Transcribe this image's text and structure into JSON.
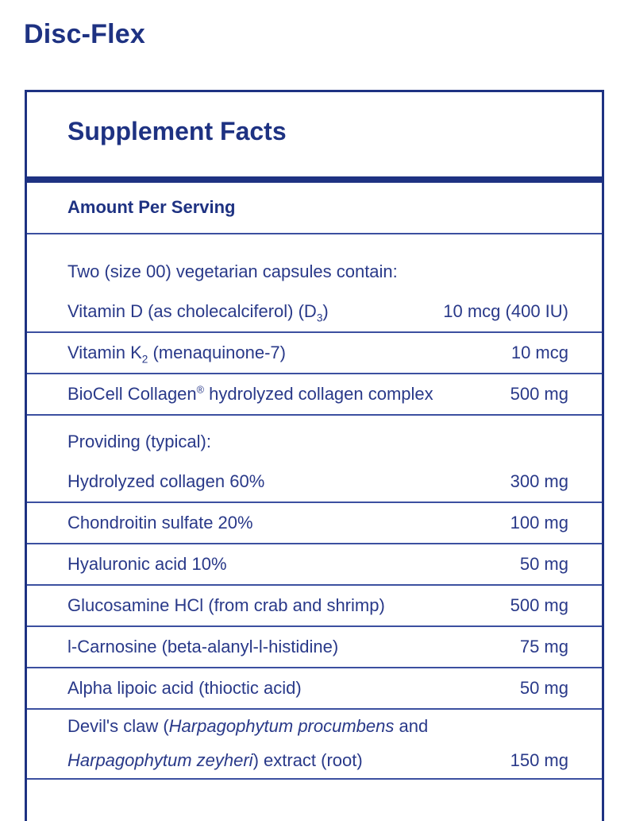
{
  "page": {
    "title": "Disc-Flex"
  },
  "colors": {
    "navy": "#1e3282",
    "body_text": "#293989",
    "divider": "#3c50a0",
    "background": "#ffffff"
  },
  "supplement_facts": {
    "header": "Supplement Facts",
    "column_header": "Amount Per Serving",
    "rows": [
      {
        "lines": [
          {
            "segments": [
              {
                "t": "Two (size 00) vegetarian capsules contain:"
              }
            ],
            "amount": ""
          },
          {
            "segments": [
              {
                "t": "Vitamin D (as cholecalciferol) (D"
              },
              {
                "t": "3",
                "style": "sub"
              },
              {
                "t": ")"
              }
            ],
            "amount": "10 mcg (400 IU)"
          }
        ]
      },
      {
        "lines": [
          {
            "segments": [
              {
                "t": "Vitamin K"
              },
              {
                "t": "2",
                "style": "sub"
              },
              {
                "t": " (menaquinone-7)"
              }
            ],
            "amount": "10 mcg"
          }
        ]
      },
      {
        "lines": [
          {
            "segments": [
              {
                "t": "BioCell Collagen"
              },
              {
                "t": "®",
                "style": "sup"
              },
              {
                "t": " hydrolyzed collagen complex"
              }
            ],
            "amount": "500 mg"
          }
        ]
      },
      {
        "lines": [
          {
            "segments": [
              {
                "t": "Providing (typical):"
              }
            ],
            "amount": ""
          },
          {
            "segments": [
              {
                "t": "Hydrolyzed collagen 60%"
              }
            ],
            "amount": "300 mg"
          }
        ]
      },
      {
        "lines": [
          {
            "segments": [
              {
                "t": "Chondroitin sulfate 20%"
              }
            ],
            "amount": "100 mg"
          }
        ]
      },
      {
        "lines": [
          {
            "segments": [
              {
                "t": "Hyaluronic acid 10%"
              }
            ],
            "amount": "50 mg"
          }
        ]
      },
      {
        "lines": [
          {
            "segments": [
              {
                "t": "Glucosamine HCl (from crab and shrimp)"
              }
            ],
            "amount": "500 mg"
          }
        ]
      },
      {
        "lines": [
          {
            "segments": [
              {
                "t": "l-Carnosine (beta-alanyl-l-histidine)"
              }
            ],
            "amount": "75 mg"
          }
        ]
      },
      {
        "lines": [
          {
            "segments": [
              {
                "t": "Alpha lipoic acid (thioctic acid)"
              }
            ],
            "amount": "50 mg"
          }
        ]
      },
      {
        "lines": [
          {
            "segments": [
              {
                "t": "Devil's claw ("
              },
              {
                "t": "Harpagophytum procumbens",
                "style": "i"
              },
              {
                "t": " and"
              }
            ],
            "amount": ""
          },
          {
            "segments": [
              {
                "t": "Harpagophytum zeyheri",
                "style": "i"
              },
              {
                "t": ") extract (root)"
              }
            ],
            "amount": "150 mg"
          }
        ]
      }
    ]
  }
}
